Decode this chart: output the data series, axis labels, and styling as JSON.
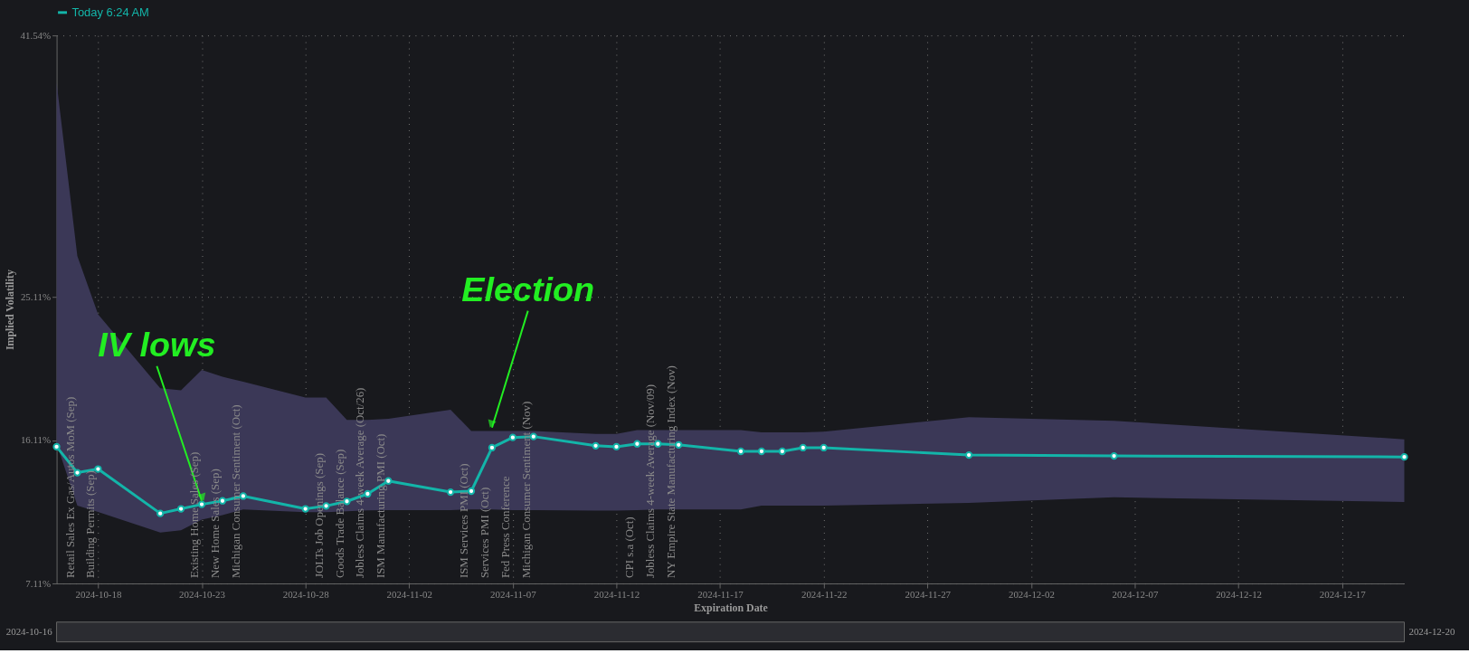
{
  "chart_data": {
    "type": "line",
    "xlabel": "Expiration Date",
    "ylabel": "Implied Volatility",
    "x": [
      "2024-10-16",
      "2024-10-17",
      "2024-10-18",
      "2024-10-21",
      "2024-10-22",
      "2024-10-23",
      "2024-10-24",
      "2024-10-25",
      "2024-10-28",
      "2024-10-29",
      "2024-10-30",
      "2024-10-31",
      "2024-11-01",
      "2024-11-04",
      "2024-11-05",
      "2024-11-06",
      "2024-11-07",
      "2024-11-08",
      "2024-11-11",
      "2024-11-12",
      "2024-11-13",
      "2024-11-14",
      "2024-11-15",
      "2024-11-18",
      "2024-11-19",
      "2024-11-20",
      "2024-11-21",
      "2024-11-22",
      "2024-11-29",
      "2024-12-06",
      "2024-12-20"
    ],
    "series": [
      {
        "name": "Today 6:24 AM",
        "color": "#13b5a9",
        "values": [
          15.7,
          14.07,
          14.3,
          11.51,
          11.8,
          12.08,
          12.3,
          12.6,
          11.8,
          11.98,
          12.27,
          12.74,
          13.55,
          12.85,
          12.91,
          15.64,
          16.28,
          16.34,
          15.76,
          15.7,
          15.88,
          15.88,
          15.82,
          15.41,
          15.41,
          15.41,
          15.64,
          15.64,
          15.18,
          15.12,
          15.06
        ],
        "lower": [
          15.9,
          12.0,
          11.6,
          10.31,
          10.45,
          11.12,
          11.4,
          11.76,
          11.59,
          11.59,
          11.65,
          11.7,
          11.72,
          11.72,
          11.76,
          11.76,
          11.72,
          11.72,
          11.69,
          11.69,
          11.72,
          11.76,
          11.76,
          11.76,
          12.0,
          12.0,
          12.0,
          12.0,
          12.17,
          12.52,
          12.23
        ],
        "upper": [
          38.56,
          27.69,
          24.02,
          19.37,
          19.25,
          20.53,
          20.1,
          19.78,
          18.79,
          18.79,
          17.39,
          17.39,
          17.45,
          18.03,
          16.69,
          16.69,
          16.69,
          16.69,
          16.5,
          16.5,
          16.75,
          16.75,
          16.75,
          16.75,
          16.6,
          16.6,
          16.6,
          16.65,
          17.56,
          17.33,
          16.17
        ]
      }
    ],
    "xlim": [
      "2024-10-16",
      "2024-12-20"
    ],
    "xticks": [
      "2024-10-18",
      "2024-10-23",
      "2024-10-28",
      "2024-11-02",
      "2024-11-07",
      "2024-11-12",
      "2024-11-17",
      "2024-11-22",
      "2024-11-27",
      "2024-12-02",
      "2024-12-07",
      "2024-12-12",
      "2024-12-17"
    ],
    "ylim": [
      7.11,
      41.54
    ],
    "yticks": [
      {
        "value": 7.11,
        "label": "7.11%"
      },
      {
        "value": 16.11,
        "label": "16.11%"
      },
      {
        "value": 25.11,
        "label": "25.11%"
      },
      {
        "value": 41.54,
        "label": "41.54%"
      }
    ],
    "grid": true,
    "legend": "top",
    "marker": "circle",
    "line_style": "solid",
    "annotations": [
      {
        "text": "IV lows",
        "x": "2024-10-23",
        "y": 12.3
      },
      {
        "text": "Election",
        "x": "2024-11-06",
        "y": 16.9
      },
      {
        "text": "Retail Sales Ex Gas/Autos MoM (Sep)",
        "x": "2024-10-17",
        "y": 14.07
      },
      {
        "text": "Building Permits (Sep)",
        "x": "2024-10-18",
        "y": 14.3
      },
      {
        "text": "Existing Home Sales (Sep)",
        "x": "2024-10-23",
        "y": 12.08
      },
      {
        "text": "New Home Sales (Sep)",
        "x": "2024-10-24",
        "y": 12.3
      },
      {
        "text": "Michigan Consumer Sentiment (Oct)",
        "x": "2024-10-25",
        "y": 12.6
      },
      {
        "text": "JOLTs Job Openings (Sep)",
        "x": "2024-10-29",
        "y": 11.98
      },
      {
        "text": "Goods Trade Balance (Sep)",
        "x": "2024-10-30",
        "y": 12.27
      },
      {
        "text": "Jobless Claims 4-week Average (Oct/26)",
        "x": "2024-10-31",
        "y": 12.74
      },
      {
        "text": "ISM Manufacturing PMI (Oct)",
        "x": "2024-11-01",
        "y": 13.55
      },
      {
        "text": "ISM Services PMI (Oct)",
        "x": "2024-11-05",
        "y": 12.91
      },
      {
        "text": "Services PMI (Oct)",
        "x": "2024-11-06",
        "y": 11.76
      },
      {
        "text": "Fed Press Conference",
        "x": "2024-11-07",
        "y": 11.72
      },
      {
        "text": "Michigan Consumer Sentiment (Nov)",
        "x": "2024-11-08",
        "y": 16.34
      },
      {
        "text": "CPI s.a (Oct)",
        "x": "2024-11-13",
        "y": 11.72
      },
      {
        "text": "Jobless Claims 4-week Average (Nov/09)",
        "x": "2024-11-14",
        "y": 15.88
      },
      {
        "text": "NY Empire State Manufacturing Index (Nov)",
        "x": "2024-11-15",
        "y": 15.82
      },
      "2024-10-16",
      "2024-12-20"
    ]
  }
}
